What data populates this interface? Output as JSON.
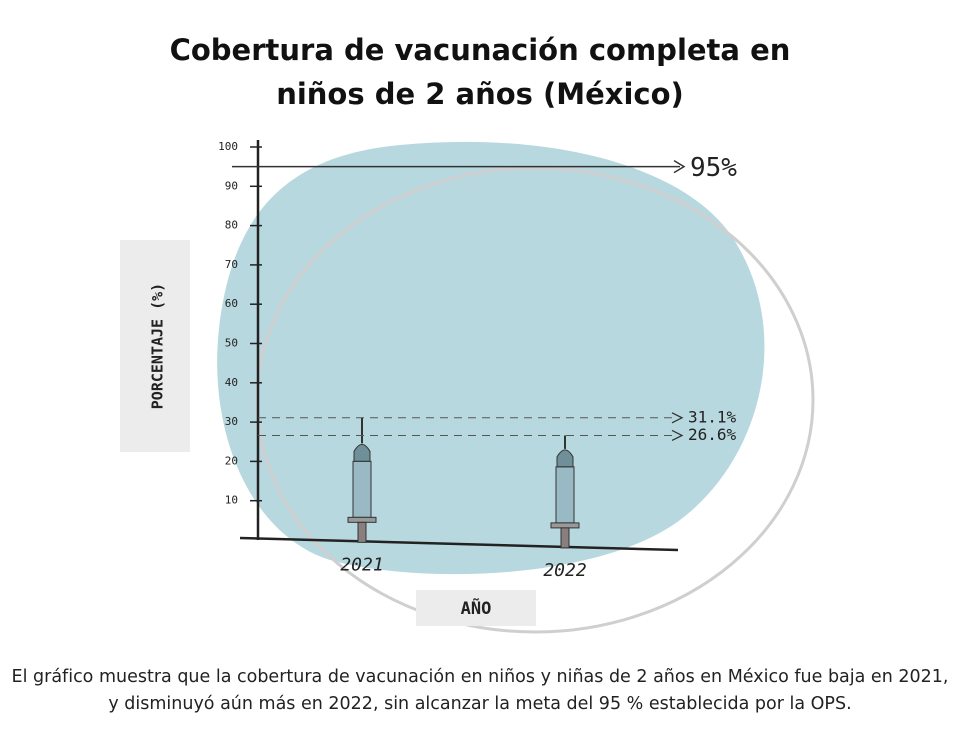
{
  "chart_data": {
    "type": "syringe",
    "title": "Cobertura de vacunación completa en niños de 2 años (México)",
    "categories": [
      "2021",
      "2022"
    ],
    "values": [
      31.1,
      26.6
    ],
    "value_labels": [
      "31.1%",
      "26.6%"
    ],
    "target": {
      "value": 95,
      "label": "95%"
    },
    "ylim": [
      0,
      100
    ],
    "yticks": [
      10,
      20,
      30,
      40,
      50,
      60,
      70,
      80,
      90,
      100
    ],
    "y_label": "PORCENTAJE (%)",
    "x_label": "AÑO",
    "grid": false,
    "color": "#7fa3ad",
    "background_color": "#b8d8e0",
    "caption": "El gráfico muestra que la cobertura de vacunación en niños y niñas de 2 años en México fue baja en 2021, y disminuyó aún más en 2022, sin alcanzar la meta del 95 % establecida por la OPS."
  }
}
